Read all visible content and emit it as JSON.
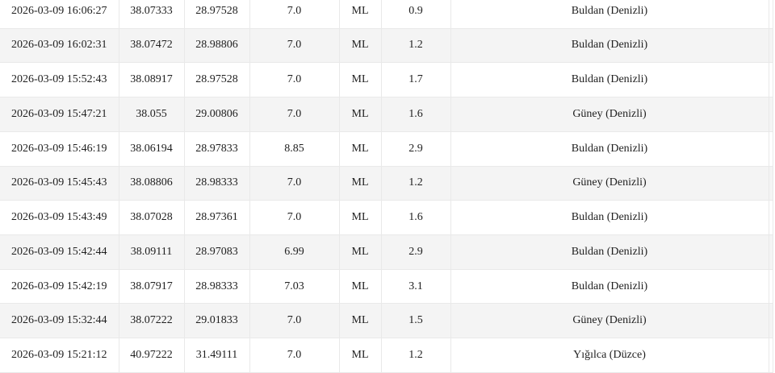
{
  "colors": {
    "stripe_background": "#f4f4f4",
    "cell_border": "#e9e9e9",
    "text": "#1f1f1f",
    "page_background": "#ffffff"
  },
  "table": {
    "rows": [
      {
        "datetime": "2026-03-09 16:06:27",
        "latitude": "38.07333",
        "longitude": "28.97528",
        "depth_km": "7.0",
        "magnitude_type": "ML",
        "magnitude": "0.9",
        "location": "Buldan (Denizli)"
      },
      {
        "datetime": "2026-03-09 16:02:31",
        "latitude": "38.07472",
        "longitude": "28.98806",
        "depth_km": "7.0",
        "magnitude_type": "ML",
        "magnitude": "1.2",
        "location": "Buldan (Denizli)"
      },
      {
        "datetime": "2026-03-09 15:52:43",
        "latitude": "38.08917",
        "longitude": "28.97528",
        "depth_km": "7.0",
        "magnitude_type": "ML",
        "magnitude": "1.7",
        "location": "Buldan (Denizli)"
      },
      {
        "datetime": "2026-03-09 15:47:21",
        "latitude": "38.055",
        "longitude": "29.00806",
        "depth_km": "7.0",
        "magnitude_type": "ML",
        "magnitude": "1.6",
        "location": "Güney (Denizli)"
      },
      {
        "datetime": "2026-03-09 15:46:19",
        "latitude": "38.06194",
        "longitude": "28.97833",
        "depth_km": "8.85",
        "magnitude_type": "ML",
        "magnitude": "2.9",
        "location": "Buldan (Denizli)"
      },
      {
        "datetime": "2026-03-09 15:45:43",
        "latitude": "38.08806",
        "longitude": "28.98333",
        "depth_km": "7.0",
        "magnitude_type": "ML",
        "magnitude": "1.2",
        "location": "Güney (Denizli)"
      },
      {
        "datetime": "2026-03-09 15:43:49",
        "latitude": "38.07028",
        "longitude": "28.97361",
        "depth_km": "7.0",
        "magnitude_type": "ML",
        "magnitude": "1.6",
        "location": "Buldan (Denizli)"
      },
      {
        "datetime": "2026-03-09 15:42:44",
        "latitude": "38.09111",
        "longitude": "28.97083",
        "depth_km": "6.99",
        "magnitude_type": "ML",
        "magnitude": "2.9",
        "location": "Buldan (Denizli)"
      },
      {
        "datetime": "2026-03-09 15:42:19",
        "latitude": "38.07917",
        "longitude": "28.98333",
        "depth_km": "7.03",
        "magnitude_type": "ML",
        "magnitude": "3.1",
        "location": "Buldan (Denizli)"
      },
      {
        "datetime": "2026-03-09 15:32:44",
        "latitude": "38.07222",
        "longitude": "29.01833",
        "depth_km": "7.0",
        "magnitude_type": "ML",
        "magnitude": "1.5",
        "location": "Güney (Denizli)"
      },
      {
        "datetime": "2026-03-09 15:21:12",
        "latitude": "40.97222",
        "longitude": "31.49111",
        "depth_km": "7.0",
        "magnitude_type": "ML",
        "magnitude": "1.2",
        "location": "Yığılca (Düzce)"
      }
    ]
  }
}
